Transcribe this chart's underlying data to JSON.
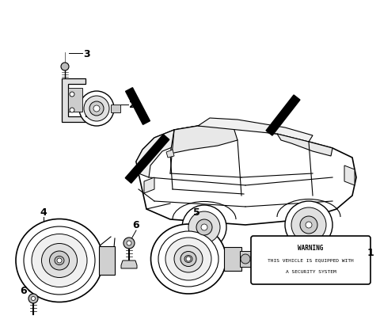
{
  "bg_color": "#ffffff",
  "warning_text": [
    "WARNING",
    "THIS VEHICLE IS EQUIPPED WITH",
    "A SECURITY SYSTEM"
  ],
  "label_fontsize": 8,
  "part_label_color": "#000000"
}
